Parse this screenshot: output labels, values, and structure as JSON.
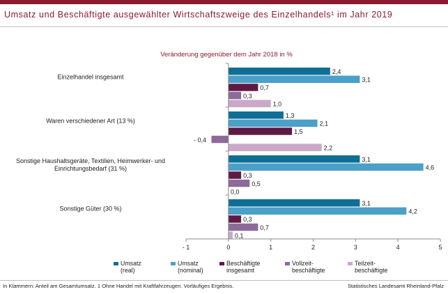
{
  "header": {
    "title": "Umsatz und Beschäftigte ausgewählter Wirtschaftszweige des Einzelhandels¹ im Jahr 2019"
  },
  "footer": {
    "note": "In Klammern: Anteil am Gesamtumsatz. 1 Ohne Handel mit Kraftfahrzeugen. Vorläufiges Ergebnis.",
    "source": "Statistisches Landesamt Rheinland-Pfalz"
  },
  "colors": {
    "accent": "#8b1a2e",
    "series": [
      "#0e6f96",
      "#4aa0c8",
      "#5e1a45",
      "#8c6a99",
      "#c9a8c9"
    ]
  },
  "chart_data": {
    "type": "bar",
    "orientation": "horizontal",
    "subtitle": "Veränderung gegenüber dem Jahr 2018 in %",
    "categories": [
      "Einzelhandel insgesamt",
      "Waren verschiedener Art (13 %)",
      "Sonstige Haushaltsgeräte, Textilien, Heimwerker- und Einrichtungsbedarf (31 %)",
      "Sonstige Güter (30 %)"
    ],
    "category_lines": [
      [
        "Einzelhandel insgesamt"
      ],
      [
        "Waren verschiedener Art (13 %)"
      ],
      [
        "Sonstige Haushaltsgeräte, Textilien, Heimwerker- und",
        "Einrichtungsbedarf (31 %)"
      ],
      [
        "Sonstige Güter (30 %)"
      ]
    ],
    "series": [
      {
        "name": "Umsatz (real)",
        "legend_lines": [
          "Umsatz",
          "(real)"
        ],
        "values": [
          2.4,
          1.3,
          3.1,
          3.1
        ],
        "labels": [
          "2,4",
          "1,3",
          "3,1",
          "3,1"
        ]
      },
      {
        "name": "Umsatz (nominal)",
        "legend_lines": [
          "Umsatz",
          "(nominal)"
        ],
        "values": [
          3.1,
          2.1,
          4.6,
          4.2
        ],
        "labels": [
          "3,1",
          "2,1",
          "4,6",
          "4,2"
        ]
      },
      {
        "name": "Beschäftigte insgesamt",
        "legend_lines": [
          "Beschäftigte",
          "insgesamt"
        ],
        "values": [
          0.7,
          1.5,
          0.3,
          0.3
        ],
        "labels": [
          "0,7",
          "1,5",
          "0,3",
          "0,3"
        ]
      },
      {
        "name": "Vollzeit-beschäftigte",
        "legend_lines": [
          "Vollzeit-",
          "beschäftigte"
        ],
        "values": [
          0.3,
          -0.4,
          0.5,
          0.7
        ],
        "labels": [
          "0,3",
          "- 0,4",
          "0,5",
          "0,7"
        ]
      },
      {
        "name": "Teilzeit-beschäftigte",
        "legend_lines": [
          "Teilzeit-",
          "beschäftigte"
        ],
        "values": [
          1.0,
          2.2,
          0.0,
          0.1
        ],
        "labels": [
          "1,0",
          "2,2",
          "0,0",
          "0,1"
        ]
      }
    ],
    "xlim": [
      -1,
      5
    ],
    "xticks": [
      -1,
      0,
      1,
      2,
      3,
      4,
      5
    ],
    "xtick_labels": [
      "- 1",
      "0",
      "1",
      "2",
      "3",
      "4",
      "5"
    ],
    "legend_position": "bottom",
    "grid": false
  }
}
